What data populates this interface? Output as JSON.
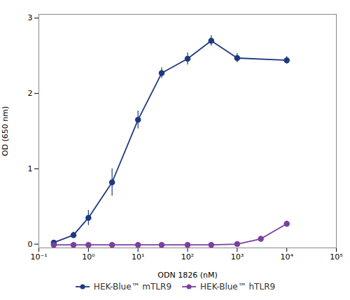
{
  "chart_data": {
    "type": "line",
    "xlabel": "ODN 1826 (nM)",
    "ylabel": "OD (650 nm)",
    "log": "x",
    "xlim": [
      0.1,
      100000
    ],
    "xticks": [
      {
        "value": 0.1,
        "label": "10⁻¹"
      },
      {
        "value": 1,
        "label": "10⁰"
      },
      {
        "value": 10,
        "label": "10¹"
      },
      {
        "value": 100,
        "label": "10²"
      },
      {
        "value": 1000,
        "label": "10³"
      },
      {
        "value": 10000,
        "label": "10⁴"
      },
      {
        "value": 100000,
        "label": "10⁵"
      }
    ],
    "ylim": [
      -0.05,
      3.05
    ],
    "yticks": [
      0,
      1,
      2,
      3
    ],
    "grid": false,
    "legend": "bottom",
    "series": [
      {
        "name": "HEK-Blue™ mTLR9",
        "color": "#1e3a7e",
        "marker": "circle",
        "line_style": "solid",
        "x": [
          0.2,
          0.5,
          1.0,
          3.0,
          10.0,
          30.0,
          100.0,
          300.0,
          1000.0,
          10000.0
        ],
        "values": [
          0.02,
          0.12,
          0.35,
          0.82,
          1.65,
          2.27,
          2.46,
          2.7,
          2.47,
          2.44
        ],
        "yerr": [
          0.01,
          0.04,
          0.1,
          0.18,
          0.12,
          0.07,
          0.08,
          0.07,
          0.06,
          0.05
        ]
      },
      {
        "name": "HEK-Blue™ hTLR9",
        "color": "#7b3fa0",
        "marker": "circle",
        "line_style": "solid",
        "x": [
          0.2,
          0.5,
          1.0,
          3.0,
          10.0,
          30.0,
          100.0,
          300.0,
          1000.0,
          3000.0,
          10000.0
        ],
        "values": [
          -0.01,
          -0.01,
          -0.01,
          -0.01,
          -0.01,
          -0.01,
          -0.01,
          -0.01,
          0.0,
          0.07,
          0.27
        ],
        "yerr": [
          0.005,
          0.005,
          0.005,
          0.005,
          0.005,
          0.005,
          0.005,
          0.005,
          0.01,
          0.02,
          0.04
        ]
      }
    ]
  }
}
